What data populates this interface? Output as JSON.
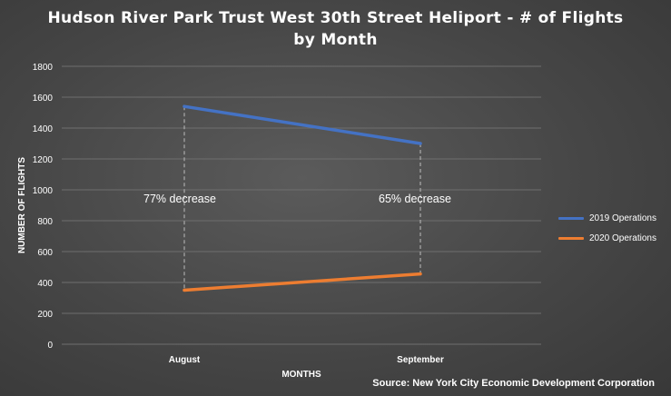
{
  "chart_data": {
    "type": "line",
    "title_lines": [
      "Hudson River Park Trust West 30th Street Heliport - # of Flights",
      "by Month"
    ],
    "xlabel": "MONTHS",
    "ylabel": "NUMBER OF FLIGHTS",
    "categories": [
      "August",
      "September"
    ],
    "ylim": [
      0,
      1800
    ],
    "yticks": [
      0,
      200,
      400,
      600,
      800,
      1000,
      1200,
      1400,
      1600,
      1800
    ],
    "grid": true,
    "legend_position": "right",
    "series": [
      {
        "name": "2019 Operations",
        "values": [
          1540,
          1300
        ],
        "color": "#4472c4"
      },
      {
        "name": "2020 Operations",
        "values": [
          350,
          455
        ],
        "color": "#ed7d31"
      }
    ],
    "annotations": [
      "77% decrease",
      "65% decrease"
    ]
  },
  "source": "Source: New York City Economic Development Corporation"
}
